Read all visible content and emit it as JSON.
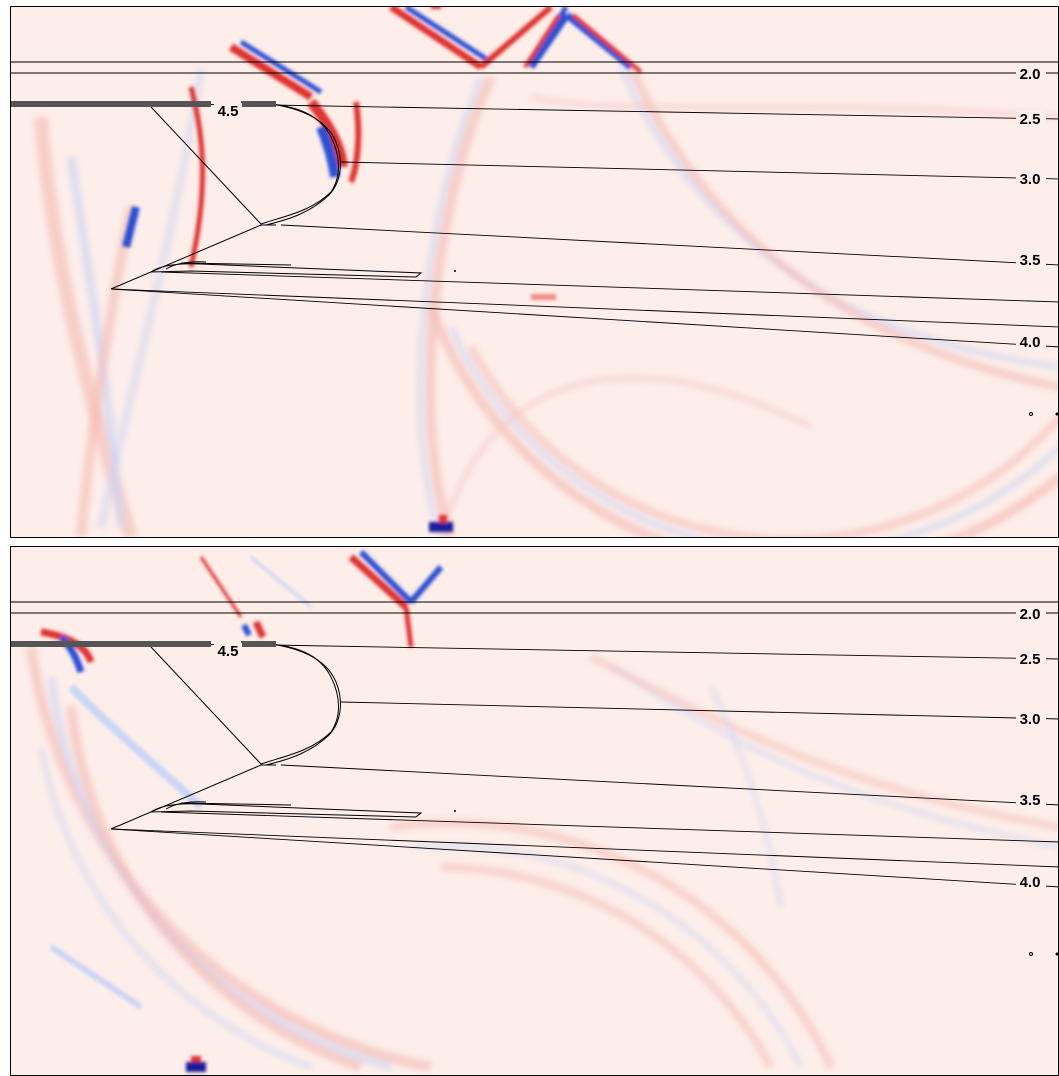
{
  "panels": [
    {
      "id": "top",
      "contour_labels": {
        "c20": "2.0",
        "c25": "2.5",
        "c30": "3.0",
        "c35": "3.5",
        "c40": "4.0",
        "c45": "4.5"
      }
    },
    {
      "id": "bottom",
      "contour_labels": {
        "c20": "2.0",
        "c25": "2.5",
        "c30": "3.0",
        "c35": "3.5",
        "c40": "4.0",
        "c45": "4.5"
      }
    }
  ],
  "colors": {
    "background": "#fdeee9",
    "positive": "#e0322e",
    "negative": "#2a4fd6",
    "contour": "#000000"
  }
}
